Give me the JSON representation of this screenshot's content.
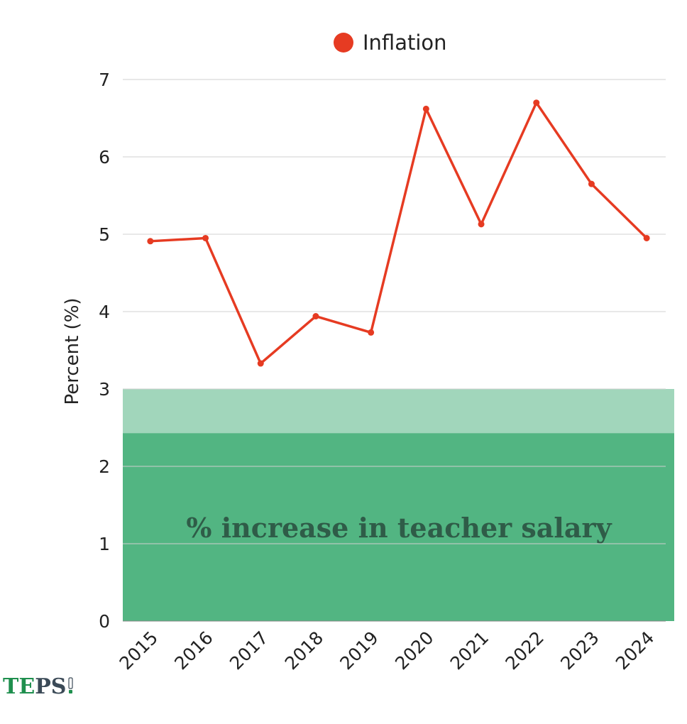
{
  "chart_data": {
    "type": "line",
    "categories": [
      "2015",
      "2016",
      "2017",
      "2018",
      "2019",
      "2020",
      "2021",
      "2022",
      "2023",
      "2024"
    ],
    "series": [
      {
        "name": "Inflation",
        "values": [
          4.91,
          4.95,
          3.33,
          3.94,
          3.73,
          6.62,
          5.13,
          6.7,
          5.65,
          4.95
        ],
        "color": "#e63b22"
      }
    ],
    "legend": {
      "position": "top-center"
    },
    "ylabel": "Percent (%)",
    "ylim": [
      0,
      7
    ],
    "yticks": [
      0,
      1,
      2,
      3,
      4,
      5,
      6,
      7
    ],
    "grid": true,
    "bands": [
      {
        "label": "% increase in teacher salary",
        "from": 0,
        "to": 2.43,
        "color": "#52b582"
      },
      {
        "label": "",
        "from": 2.43,
        "to": 3.0,
        "color": "#a1d6bb"
      }
    ]
  },
  "logo": {
    "text_primary": "TE",
    "text_secondary": "PS",
    "color_primary": "#1f8f4e",
    "color_secondary": "#3b4a57"
  }
}
